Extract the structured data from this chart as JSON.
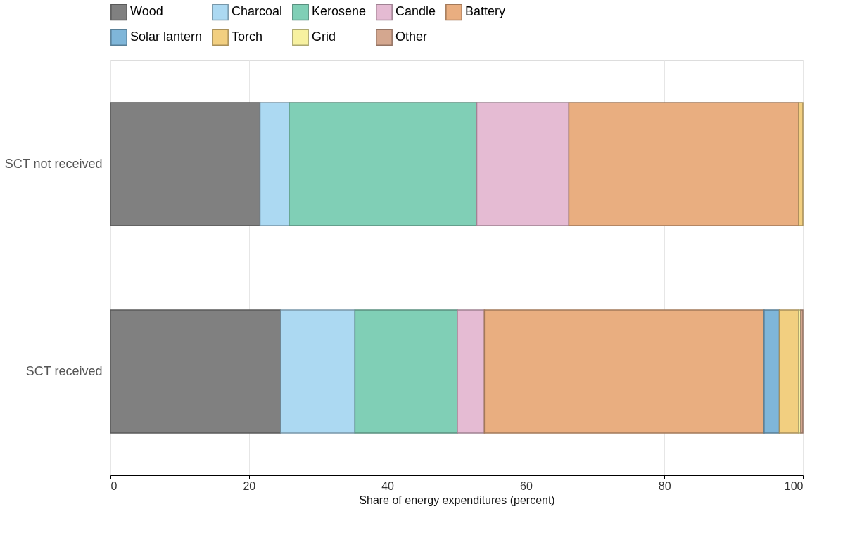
{
  "chart_data": {
    "type": "bar",
    "orientation": "horizontal",
    "stacked": true,
    "categories": [
      "SCT not received",
      "SCT received"
    ],
    "xlabel": "Share of energy expenditures (percent)",
    "xlim": [
      0,
      100
    ],
    "xticks": [
      0,
      20,
      40,
      60,
      80,
      100
    ],
    "grid": "x",
    "legend": "top",
    "series": [
      {
        "name": "Wood",
        "color": "#808080",
        "values": [
          21.6,
          24.6
        ]
      },
      {
        "name": "Charcoal",
        "color": "#acd9f2",
        "values": [
          4.2,
          10.7
        ]
      },
      {
        "name": "Kerosene",
        "color": "#80cfb6",
        "values": [
          27.1,
          14.8
        ]
      },
      {
        "name": "Candle",
        "color": "#e5bbd3",
        "values": [
          13.3,
          3.9
        ]
      },
      {
        "name": "Battery",
        "color": "#e9ae80",
        "values": [
          33.2,
          40.4
        ]
      },
      {
        "name": "Solar lantern",
        "color": "#7fb6d9",
        "values": [
          null,
          2.2
        ]
      },
      {
        "name": "Torch",
        "color": "#f2cf80",
        "values": [
          0.6,
          2.8
        ]
      },
      {
        "name": "Grid",
        "color": "#f7f1a0",
        "values": [
          null,
          0.3
        ]
      },
      {
        "name": "Other",
        "color": "#d4a78f",
        "values": [
          null,
          0.3
        ]
      }
    ]
  }
}
